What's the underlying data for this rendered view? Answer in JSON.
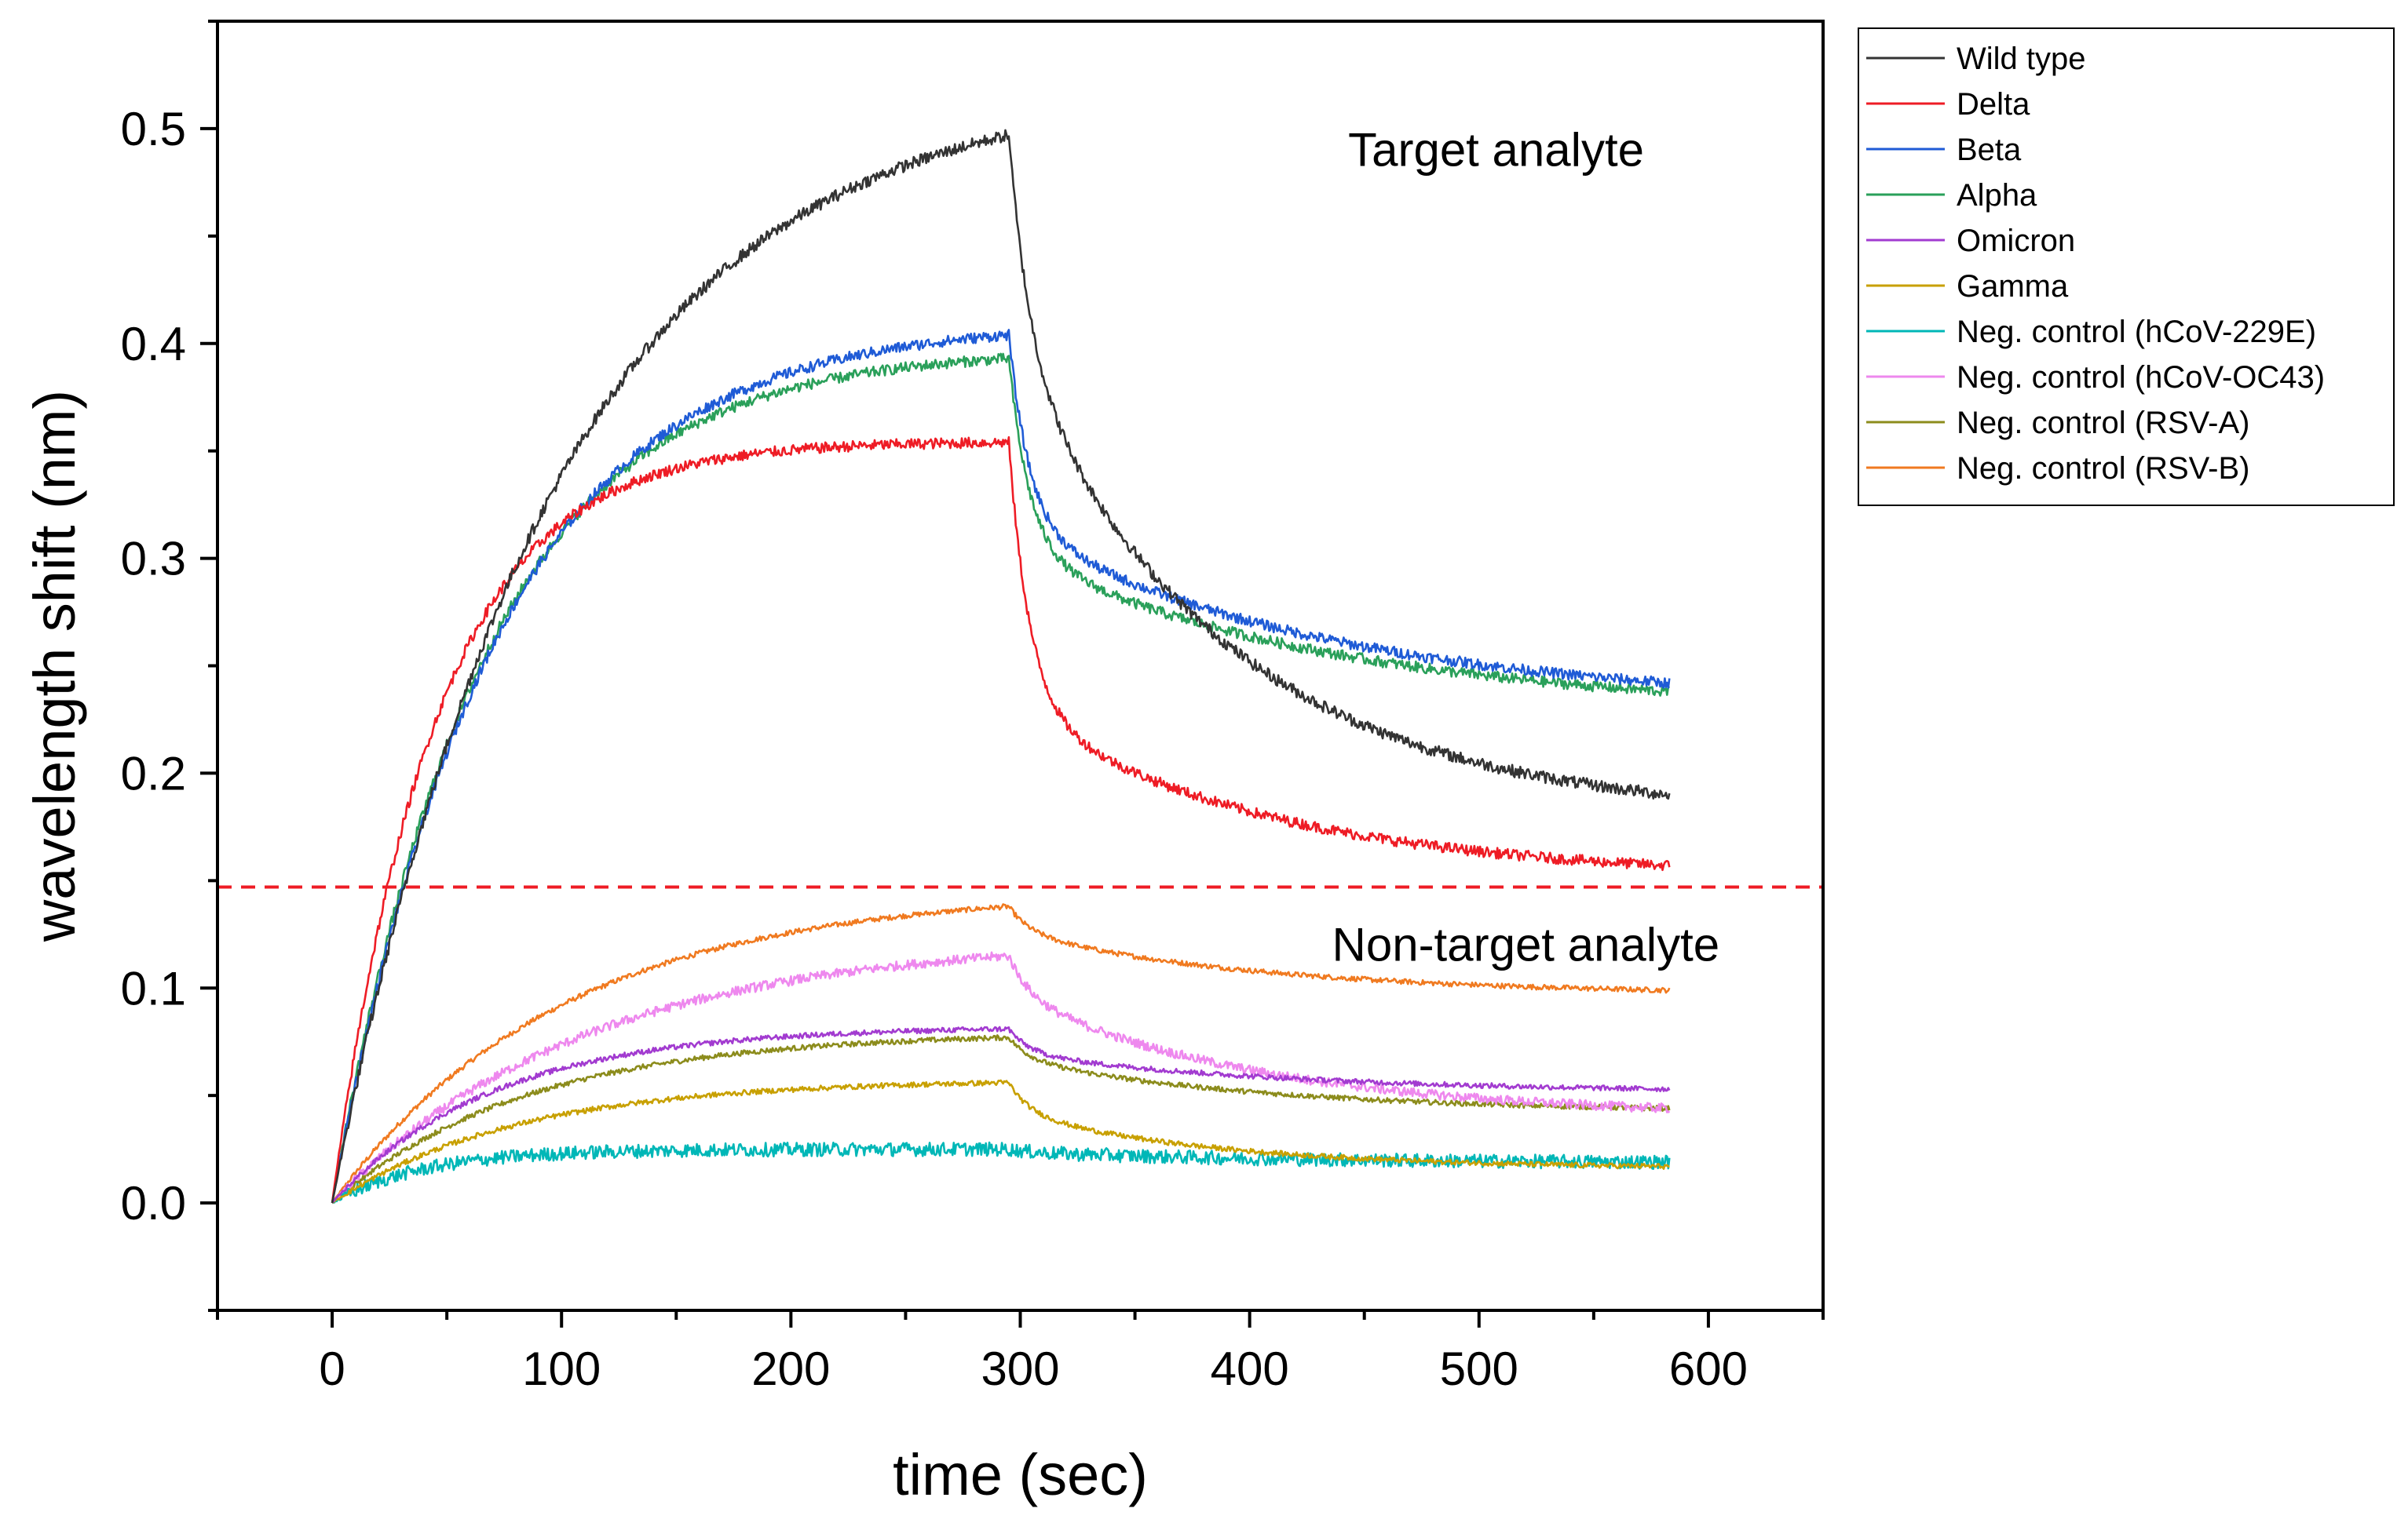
{
  "chart_data": {
    "type": "line",
    "title": "",
    "xlabel": "time (sec)",
    "ylabel": "wavelength shift (nm)",
    "xlim": [
      -50,
      650
    ],
    "ylim": [
      -0.05,
      0.55
    ],
    "x_ticks": [
      0,
      100,
      200,
      300,
      400,
      500,
      600
    ],
    "x_tick_labels": [
      "0",
      "100",
      "200",
      "300",
      "400",
      "500",
      "600"
    ],
    "y_ticks": [
      0.0,
      0.1,
      0.2,
      0.3,
      0.4,
      0.5
    ],
    "y_tick_labels": [
      "0.0",
      "0.1",
      "0.2",
      "0.3",
      "0.4",
      "0.5"
    ],
    "grid": false,
    "legend_position": "outside-right-top",
    "annotations": [
      {
        "text": "Target analyte",
        "x": 445,
        "y": 0.49
      },
      {
        "text": "Non-target analyte",
        "x": 440,
        "y": 0.12
      }
    ],
    "threshold": {
      "y": 0.147,
      "color": "#ee1c25",
      "style": "dashed"
    },
    "switch_time": 295,
    "end_time": 583,
    "series": [
      {
        "name": "Wild type",
        "color": "#333333",
        "peak": 0.497,
        "tau_assoc": 95,
        "end": 0.19,
        "tau_dissoc": 95,
        "fast_frac": 0.32,
        "noise": 0.0028
      },
      {
        "name": "Delta",
        "color": "#ee1c25",
        "peak": 0.354,
        "tau_assoc": 45,
        "end": 0.157,
        "tau_dissoc": 110,
        "fast_frac": 0.62,
        "noise": 0.0025
      },
      {
        "name": "Beta",
        "color": "#1f5bd6",
        "peak": 0.404,
        "tau_assoc": 70,
        "end": 0.242,
        "tau_dissoc": 140,
        "fast_frac": 0.55,
        "noise": 0.0025
      },
      {
        "name": "Alpha",
        "color": "#2aa05a",
        "peak": 0.393,
        "tau_assoc": 65,
        "end": 0.238,
        "tau_dissoc": 140,
        "fast_frac": 0.58,
        "noise": 0.0025
      },
      {
        "name": "Omicron",
        "color": "#a23bd0",
        "peak": 0.081,
        "tau_assoc": 70,
        "end": 0.053,
        "tau_dissoc": 120,
        "fast_frac": 0.4,
        "noise": 0.0012
      },
      {
        "name": "Gamma",
        "color": "#c8a000",
        "peak": 0.056,
        "tau_assoc": 80,
        "end": 0.017,
        "tau_dissoc": 90,
        "fast_frac": 0.35,
        "noise": 0.0012
      },
      {
        "name": "Neg. control (hCoV-229E)",
        "color": "#00b7b7",
        "peak": 0.025,
        "tau_assoc": 40,
        "end": 0.019,
        "tau_dissoc": 120,
        "fast_frac": 0.2,
        "noise": 0.0032
      },
      {
        "name": "Neg. control (hCoV-OC43)",
        "color": "#ee88ee",
        "peak": 0.115,
        "tau_assoc": 110,
        "end": 0.044,
        "tau_dissoc": 110,
        "fast_frac": 0.25,
        "noise": 0.0022
      },
      {
        "name": "Neg. control (RSV-A)",
        "color": "#8c8c1c",
        "peak": 0.077,
        "tau_assoc": 85,
        "end": 0.044,
        "tau_dissoc": 110,
        "fast_frac": 0.3,
        "noise": 0.0012
      },
      {
        "name": "Neg. control (RSV-B)",
        "color": "#f07a20",
        "peak": 0.138,
        "tau_assoc": 100,
        "end": 0.099,
        "tau_dissoc": 110,
        "fast_frac": 0.3,
        "noise": 0.0012
      }
    ]
  }
}
